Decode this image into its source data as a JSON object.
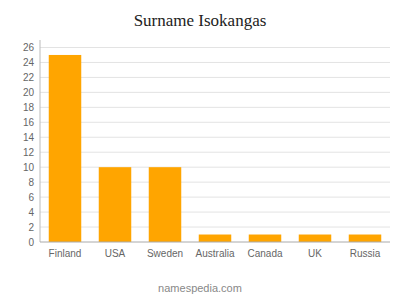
{
  "chart_data": {
    "type": "bar",
    "title": "Surname Isokangas",
    "categories": [
      "Finland",
      "USA",
      "Sweden",
      "Australia",
      "Canada",
      "UK",
      "Russia"
    ],
    "values": [
      25,
      10,
      10,
      1,
      1,
      1,
      1
    ],
    "color": "#FFA500",
    "ylim": [
      0,
      27
    ],
    "yticks": [
      0,
      2,
      4,
      6,
      8,
      10,
      12,
      14,
      16,
      18,
      20,
      22,
      24,
      26
    ],
    "grid": true,
    "annotations": [
      "namespedia.com"
    ]
  }
}
